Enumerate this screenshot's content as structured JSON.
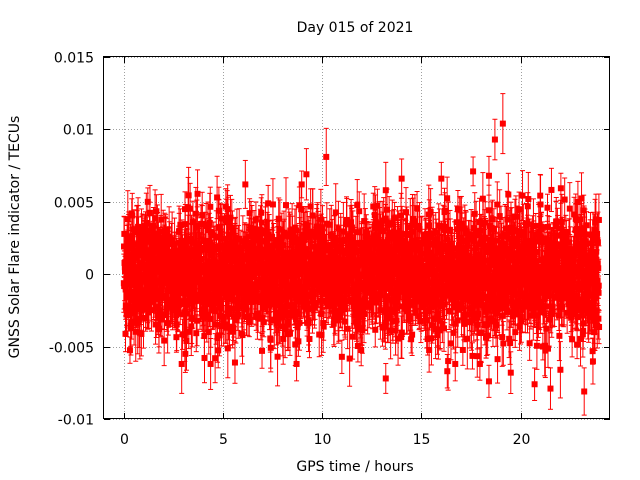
{
  "chart_data": {
    "type": "scatter",
    "title": "Day 015 of 2021",
    "xlabel": "GPS time / hours",
    "ylabel": "GNSS Solar Flare indicator / TECUs",
    "xlim": [
      -1,
      24.5
    ],
    "ylim": [
      -0.01,
      0.015
    ],
    "x_ticks": [
      0,
      5,
      10,
      15,
      20
    ],
    "x_tick_labels": [
      "0",
      "5",
      "10",
      "15",
      "20"
    ],
    "y_ticks": [
      -0.01,
      -0.005,
      0,
      0.005,
      0.01,
      0.015
    ],
    "y_tick_labels": [
      "-0.01",
      "-0.005",
      "0",
      "0.005",
      "0.01",
      "0.015"
    ],
    "grid": true,
    "series": [
      {
        "color": "#ff0000",
        "marker": "square",
        "error_bars": true,
        "x_range": [
          0,
          23.95
        ],
        "sample_interval_hours": 0.00833,
        "typical_spread_sigma": 0.002,
        "typical_error": 0.0015,
        "notable_points": [
          {
            "x": 0.2,
            "y": 0.0038
          },
          {
            "x": 0.4,
            "y": 0.0042
          },
          {
            "x": 4.7,
            "y": 0.0053
          },
          {
            "x": 9.2,
            "y": 0.0069
          },
          {
            "x": 10.2,
            "y": 0.0081
          },
          {
            "x": 13.2,
            "y": 0.0058
          },
          {
            "x": 14.0,
            "y": 0.0066
          },
          {
            "x": 16.0,
            "y": 0.0066
          },
          {
            "x": 17.6,
            "y": 0.0071
          },
          {
            "x": 18.4,
            "y": 0.0068
          },
          {
            "x": 18.7,
            "y": 0.0093
          },
          {
            "x": 19.1,
            "y": 0.0104
          },
          {
            "x": 3.1,
            "y": -0.0055
          },
          {
            "x": 4.6,
            "y": -0.0058
          },
          {
            "x": 5.6,
            "y": -0.0061
          },
          {
            "x": 13.2,
            "y": -0.0072
          },
          {
            "x": 16.3,
            "y": -0.0067
          },
          {
            "x": 18.4,
            "y": -0.0074
          },
          {
            "x": 19.5,
            "y": -0.0068
          },
          {
            "x": 20.7,
            "y": -0.0076
          },
          {
            "x": 21.5,
            "y": -0.0079
          },
          {
            "x": 22.0,
            "y": -0.0066
          },
          {
            "x": 23.2,
            "y": -0.0081
          },
          {
            "x": 23.7,
            "y": -0.004
          }
        ]
      }
    ]
  }
}
